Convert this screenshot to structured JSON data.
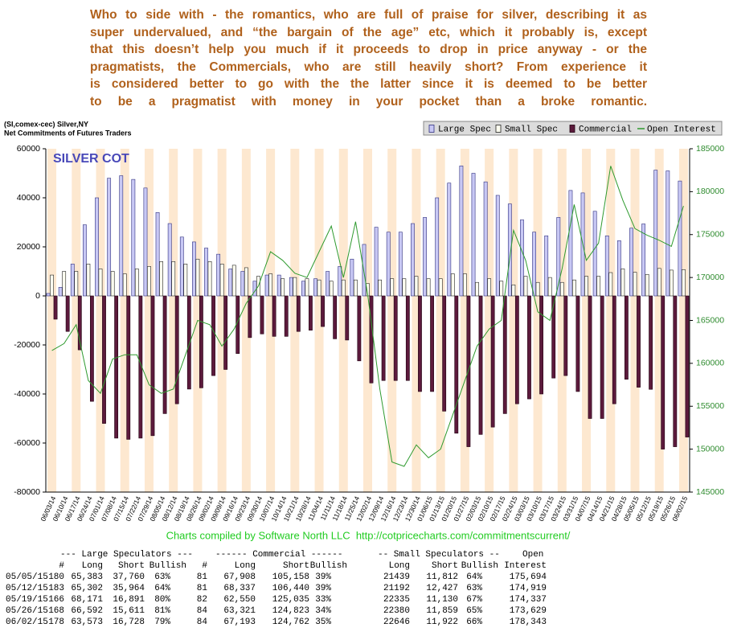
{
  "intro": {
    "lines": [
      "Who to side with - the romantics, who are full of praise for silver, describing it as",
      "super undervalued, and “the bargain of the age” etc, which it probably is, except",
      "that this doesn’t help you much if it proceeds to drop in price anyway - or the",
      "pragmatists, the Commercials, who are still heavily short? From experience it",
      "is considered better to go with the the latter since it is deemed to be better",
      "to be a pragmatist with money in your pocket than a broke romantic."
    ]
  },
  "chart_data": {
    "type": "bar",
    "title": "SILVER COT",
    "header": [
      "(SI,comex-cec) Silver,NY",
      "Net Commitments of Futures Traders"
    ],
    "footer": "Charts compiled by Software North LLC  http://cotpricecharts.com/commitmentscurrent/",
    "legend": "top-right",
    "categories": [
      "06/03/14",
      "06/10/14",
      "06/17/14",
      "06/24/14",
      "07/01/14",
      "07/08/14",
      "07/15/14",
      "07/22/14",
      "07/29/14",
      "08/05/14",
      "08/12/14",
      "08/19/14",
      "08/26/14",
      "09/02/14",
      "09/09/14",
      "09/16/14",
      "09/23/14",
      "09/30/14",
      "10/07/14",
      "10/14/14",
      "10/21/14",
      "10/28/14",
      "11/04/14",
      "11/11/14",
      "11/18/14",
      "11/25/14",
      "12/02/14",
      "12/09/14",
      "12/16/14",
      "12/23/14",
      "12/30/14",
      "01/06/15",
      "01/13/15",
      "01/20/15",
      "01/27/15",
      "02/03/15",
      "02/10/15",
      "02/17/15",
      "02/24/15",
      "03/03/15",
      "03/10/15",
      "03/17/15",
      "03/24/15",
      "03/31/15",
      "04/07/15",
      "04/14/15",
      "04/21/15",
      "04/28/15",
      "05/05/15",
      "05/12/15",
      "05/19/15",
      "05/26/15",
      "06/02/15"
    ],
    "series": [
      {
        "name": "Large Spec",
        "color": "#c8c8f4",
        "stroke": "#303080",
        "values": [
          1000,
          3500,
          13000,
          29000,
          40000,
          48000,
          49000,
          47500,
          44000,
          34000,
          29500,
          24000,
          22000,
          19500,
          17000,
          11000,
          10000,
          6000,
          8500,
          8500,
          7500,
          6000,
          7000,
          10000,
          12000,
          15000,
          21000,
          28000,
          26000,
          26000,
          29500,
          32000,
          40000,
          46000,
          53000,
          50000,
          46500,
          41000,
          37500,
          31000,
          26000,
          24500,
          32000,
          43000,
          42000,
          34500,
          24500,
          22500,
          27623,
          29338,
          51280,
          50981,
          46845
        ]
      },
      {
        "name": "Small Spec",
        "color": "#fffff0",
        "stroke": "#202020",
        "values": [
          8500,
          10000,
          10000,
          13000,
          11000,
          10000,
          9000,
          11000,
          12000,
          14000,
          14000,
          13000,
          15000,
          14000,
          13000,
          12500,
          11500,
          8000,
          9000,
          7000,
          7500,
          7000,
          6500,
          6000,
          6500,
          6500,
          5000,
          6500,
          7000,
          7000,
          8000,
          7000,
          7000,
          9000,
          9000,
          5500,
          7000,
          6000,
          4500,
          8000,
          5500,
          7500,
          5500,
          6500,
          8000,
          8000,
          9500,
          11000,
          9627,
          8765,
          11205,
          10521,
          10724
        ]
      },
      {
        "name": "Commercial",
        "color": "#5c1a3c",
        "stroke": "#200010",
        "values": [
          -9500,
          -14500,
          -22000,
          -43000,
          -52000,
          -58000,
          -58500,
          -58000,
          -57000,
          -48000,
          -44000,
          -38000,
          -37500,
          -32500,
          -30000,
          -23500,
          -17000,
          -15500,
          -16500,
          -16500,
          -14500,
          -14000,
          -12500,
          -17500,
          -18000,
          -26500,
          -35500,
          -34500,
          -34500,
          -34500,
          -39000,
          -39000,
          -47000,
          -56000,
          -61500,
          -56500,
          -53500,
          -48000,
          -44000,
          -42000,
          -40000,
          -33500,
          -32500,
          -39000,
          -50000,
          -50000,
          -44000,
          -34000,
          -37250,
          -38103,
          -62485,
          -61502,
          -57569
        ]
      },
      {
        "name": "Open Interest",
        "color": "#2e9a2e",
        "axis": "y2",
        "type": "line",
        "values": [
          161500,
          162300,
          164500,
          158000,
          156500,
          160500,
          161000,
          161000,
          157500,
          156500,
          157000,
          161000,
          165000,
          164500,
          162000,
          164000,
          167000,
          169000,
          173000,
          172000,
          170500,
          170000,
          173000,
          176000,
          170000,
          176500,
          168000,
          157000,
          148500,
          148000,
          150500,
          149000,
          150000,
          154000,
          158000,
          162000,
          164000,
          165000,
          175500,
          172000,
          166000,
          165000,
          171000,
          178500,
          172000,
          174000,
          183000,
          179000,
          175694,
          174919,
          174337,
          173629,
          178343
        ]
      }
    ],
    "ylim": [
      -80000,
      60000
    ],
    "yticks": [
      -80000,
      -60000,
      -40000,
      -20000,
      0,
      20000,
      40000,
      60000
    ],
    "y2lim": [
      145000,
      185000
    ],
    "y2ticks": [
      145000,
      150000,
      155000,
      160000,
      165000,
      170000,
      175000,
      180000,
      185000
    ]
  },
  "table": {
    "group_headers": [
      "--- Large Speculators ---",
      "------ Commercial ------",
      "-- Small Speculators --",
      "Open"
    ],
    "columns": [
      "#",
      "Long",
      "Short",
      "Bullish",
      "#",
      "Long",
      "Short",
      "Bullish",
      "Long",
      "Short",
      "Bullish",
      "Interest"
    ],
    "rows": [
      [
        "05/05/15",
        "180",
        "65,383",
        "37,760",
        "63%",
        "81",
        "67,908",
        "105,158",
        "39%",
        "21439",
        "11,812",
        "64%",
        "175,694"
      ],
      [
        "05/12/15",
        "183",
        "65,302",
        "35,964",
        "64%",
        "81",
        "68,337",
        "106,440",
        "39%",
        "21192",
        "12,427",
        "63%",
        "174,919"
      ],
      [
        "05/19/15",
        "166",
        "68,171",
        "16,891",
        "80%",
        "82",
        "62,550",
        "125,035",
        "33%",
        "22335",
        "11,130",
        "67%",
        "174,337"
      ],
      [
        "05/26/15",
        "168",
        "66,592",
        "15,611",
        "81%",
        "84",
        "63,321",
        "124,823",
        "34%",
        "22380",
        "11,859",
        "65%",
        "173,629"
      ],
      [
        "06/02/15",
        "178",
        "63,573",
        "16,728",
        "79%",
        "84",
        "67,193",
        "124,762",
        "35%",
        "22646",
        "11,922",
        "66%",
        "178,343"
      ]
    ]
  }
}
